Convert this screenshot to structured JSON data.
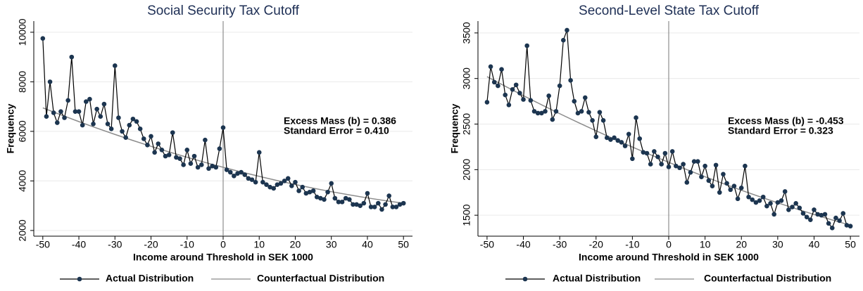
{
  "chart_data": [
    {
      "type": "line",
      "title": "Social Security Tax Cutoff",
      "x_label": "Income around Threshold in SEK 1000",
      "y_label": "Frequency",
      "x": [
        -50,
        -49,
        -48,
        -47,
        -46,
        -45,
        -44,
        -43,
        -42,
        -41,
        -40,
        -39,
        -38,
        -37,
        -36,
        -35,
        -34,
        -33,
        -32,
        -31,
        -30,
        -29,
        -28,
        -27,
        -26,
        -25,
        -24,
        -23,
        -22,
        -21,
        -20,
        -19,
        -18,
        -17,
        -16,
        -15,
        -14,
        -13,
        -12,
        -11,
        -10,
        -9,
        -8,
        -7,
        -6,
        -5,
        -4,
        -3,
        -2,
        -1,
        0,
        1,
        2,
        3,
        4,
        5,
        6,
        7,
        8,
        9,
        10,
        11,
        12,
        13,
        14,
        15,
        16,
        17,
        18,
        19,
        20,
        21,
        22,
        23,
        24,
        25,
        26,
        27,
        28,
        29,
        30,
        31,
        32,
        33,
        34,
        35,
        36,
        37,
        38,
        39,
        40,
        41,
        42,
        43,
        44,
        45,
        46,
        47,
        48,
        49,
        50
      ],
      "series": [
        {
          "name": "Actual Distribution",
          "color": "#1c3550",
          "marker": true,
          "values": [
            9750,
            6600,
            8000,
            6750,
            6350,
            6800,
            6550,
            7250,
            9000,
            6800,
            6800,
            6250,
            7200,
            7300,
            6300,
            6900,
            6600,
            7100,
            6300,
            6100,
            8650,
            6550,
            6000,
            5750,
            6250,
            6500,
            6400,
            6100,
            5700,
            5450,
            5800,
            5150,
            5500,
            5250,
            5000,
            5050,
            5950,
            4950,
            4900,
            4650,
            5250,
            4700,
            5000,
            4550,
            4650,
            5650,
            4500,
            4600,
            4550,
            5300,
            6150,
            4450,
            4350,
            4200,
            4300,
            4350,
            4250,
            4100,
            4050,
            3950,
            5150,
            3950,
            3850,
            3750,
            3700,
            3850,
            3900,
            4000,
            4100,
            3800,
            3950,
            3600,
            3750,
            3500,
            3550,
            3600,
            3350,
            3300,
            3250,
            3550,
            3900,
            3300,
            3150,
            3150,
            3300,
            3250,
            3050,
            3050,
            3000,
            3100,
            3500,
            2950,
            2950,
            3100,
            2850,
            3050,
            3400,
            2950,
            2950,
            3050,
            3100
          ]
        },
        {
          "name": "Counterfactual Distribution",
          "color": "#8c8c8c",
          "marker": false,
          "x": [
            -50,
            -45,
            -40,
            -35,
            -30,
            -25,
            -20,
            -15,
            -10,
            -5,
            0,
            5,
            10,
            15,
            20,
            25,
            30,
            35,
            40,
            45,
            50
          ],
          "values": [
            6950,
            6667,
            6394,
            6130,
            5876,
            5631,
            5396,
            5170,
            4954,
            4747,
            4550,
            4362,
            4184,
            4015,
            3856,
            3706,
            3566,
            3435,
            3314,
            3202,
            3100
          ]
        }
      ],
      "annotations": [
        "Excess Mass (b) = 0.386",
        "Standard Error = 0.410"
      ],
      "vline": 0,
      "xlim": [
        -52.5,
        52.5
      ],
      "xticks": [
        -50,
        -40,
        -30,
        -20,
        -10,
        0,
        10,
        20,
        30,
        40,
        50
      ],
      "ylim": [
        1770,
        10450
      ],
      "yticks": [
        2000,
        4000,
        6000,
        8000,
        10000
      ],
      "grid": true,
      "legend": "bottom"
    },
    {
      "type": "line",
      "title": "Second-Level State Tax Cutoff",
      "x_label": "Income around Threshold in SEK 1000",
      "y_label": "Frequency",
      "x": [
        -50,
        -49,
        -48,
        -47,
        -46,
        -45,
        -44,
        -43,
        -42,
        -41,
        -40,
        -39,
        -38,
        -37,
        -36,
        -35,
        -34,
        -33,
        -32,
        -31,
        -30,
        -29,
        -28,
        -27,
        -26,
        -25,
        -24,
        -23,
        -22,
        -21,
        -20,
        -19,
        -18,
        -17,
        -16,
        -15,
        -14,
        -13,
        -12,
        -11,
        -10,
        -9,
        -8,
        -7,
        -6,
        -5,
        -4,
        -3,
        -2,
        -1,
        0,
        1,
        2,
        3,
        4,
        5,
        6,
        7,
        8,
        9,
        10,
        11,
        12,
        13,
        14,
        15,
        16,
        17,
        18,
        19,
        20,
        21,
        22,
        23,
        24,
        25,
        26,
        27,
        28,
        29,
        30,
        31,
        32,
        33,
        34,
        35,
        36,
        37,
        38,
        39,
        40,
        41,
        42,
        43,
        44,
        45,
        46,
        47,
        48,
        49,
        50
      ],
      "series": [
        {
          "name": "Actual Distribution",
          "color": "#1c3550",
          "marker": true,
          "values": [
            2740,
            3130,
            2960,
            2920,
            3100,
            2820,
            2710,
            2880,
            2930,
            2840,
            2770,
            3360,
            2760,
            2640,
            2620,
            2620,
            2640,
            2810,
            2550,
            2640,
            2920,
            3420,
            3530,
            2980,
            2750,
            2620,
            2640,
            2790,
            2630,
            2540,
            2360,
            2630,
            2540,
            2350,
            2330,
            2350,
            2320,
            2300,
            2260,
            2390,
            2120,
            2570,
            2340,
            2190,
            2180,
            2060,
            2200,
            2140,
            2060,
            2180,
            2030,
            2200,
            2040,
            2020,
            2060,
            1860,
            1970,
            2090,
            2090,
            1920,
            2040,
            1880,
            1820,
            2050,
            1750,
            1950,
            1850,
            1780,
            1820,
            1680,
            1800,
            2040,
            1700,
            1670,
            1640,
            1660,
            1700,
            1600,
            1630,
            1510,
            1640,
            1660,
            1760,
            1560,
            1590,
            1630,
            1580,
            1520,
            1480,
            1450,
            1560,
            1510,
            1500,
            1510,
            1410,
            1360,
            1470,
            1440,
            1520,
            1390,
            1380
          ]
        },
        {
          "name": "Counterfactual Distribution",
          "color": "#8c8c8c",
          "marker": false,
          "x": [
            -50,
            -45,
            -40,
            -35,
            -30,
            -25,
            -20,
            -15,
            -10,
            -5,
            0,
            5,
            10,
            15,
            20,
            25,
            30,
            35,
            40,
            45,
            50
          ],
          "values": [
            3020,
            2915,
            2812,
            2712,
            2614,
            2519,
            2426,
            2336,
            2248,
            2163,
            2080,
            2000,
            1922,
            1847,
            1774,
            1704,
            1636,
            1571,
            1508,
            1448,
            1390
          ]
        }
      ],
      "annotations": [
        "Excess Mass (b) = -0.453",
        "Standard Error = 0.323"
      ],
      "vline": 0,
      "xlim": [
        -52.5,
        52.5
      ],
      "xticks": [
        -50,
        -40,
        -30,
        -20,
        -10,
        0,
        10,
        20,
        30,
        40,
        50
      ],
      "ylim": [
        1270,
        3630
      ],
      "yticks": [
        1500,
        2000,
        2500,
        3000,
        3500
      ],
      "grid": true,
      "legend": "bottom"
    }
  ]
}
